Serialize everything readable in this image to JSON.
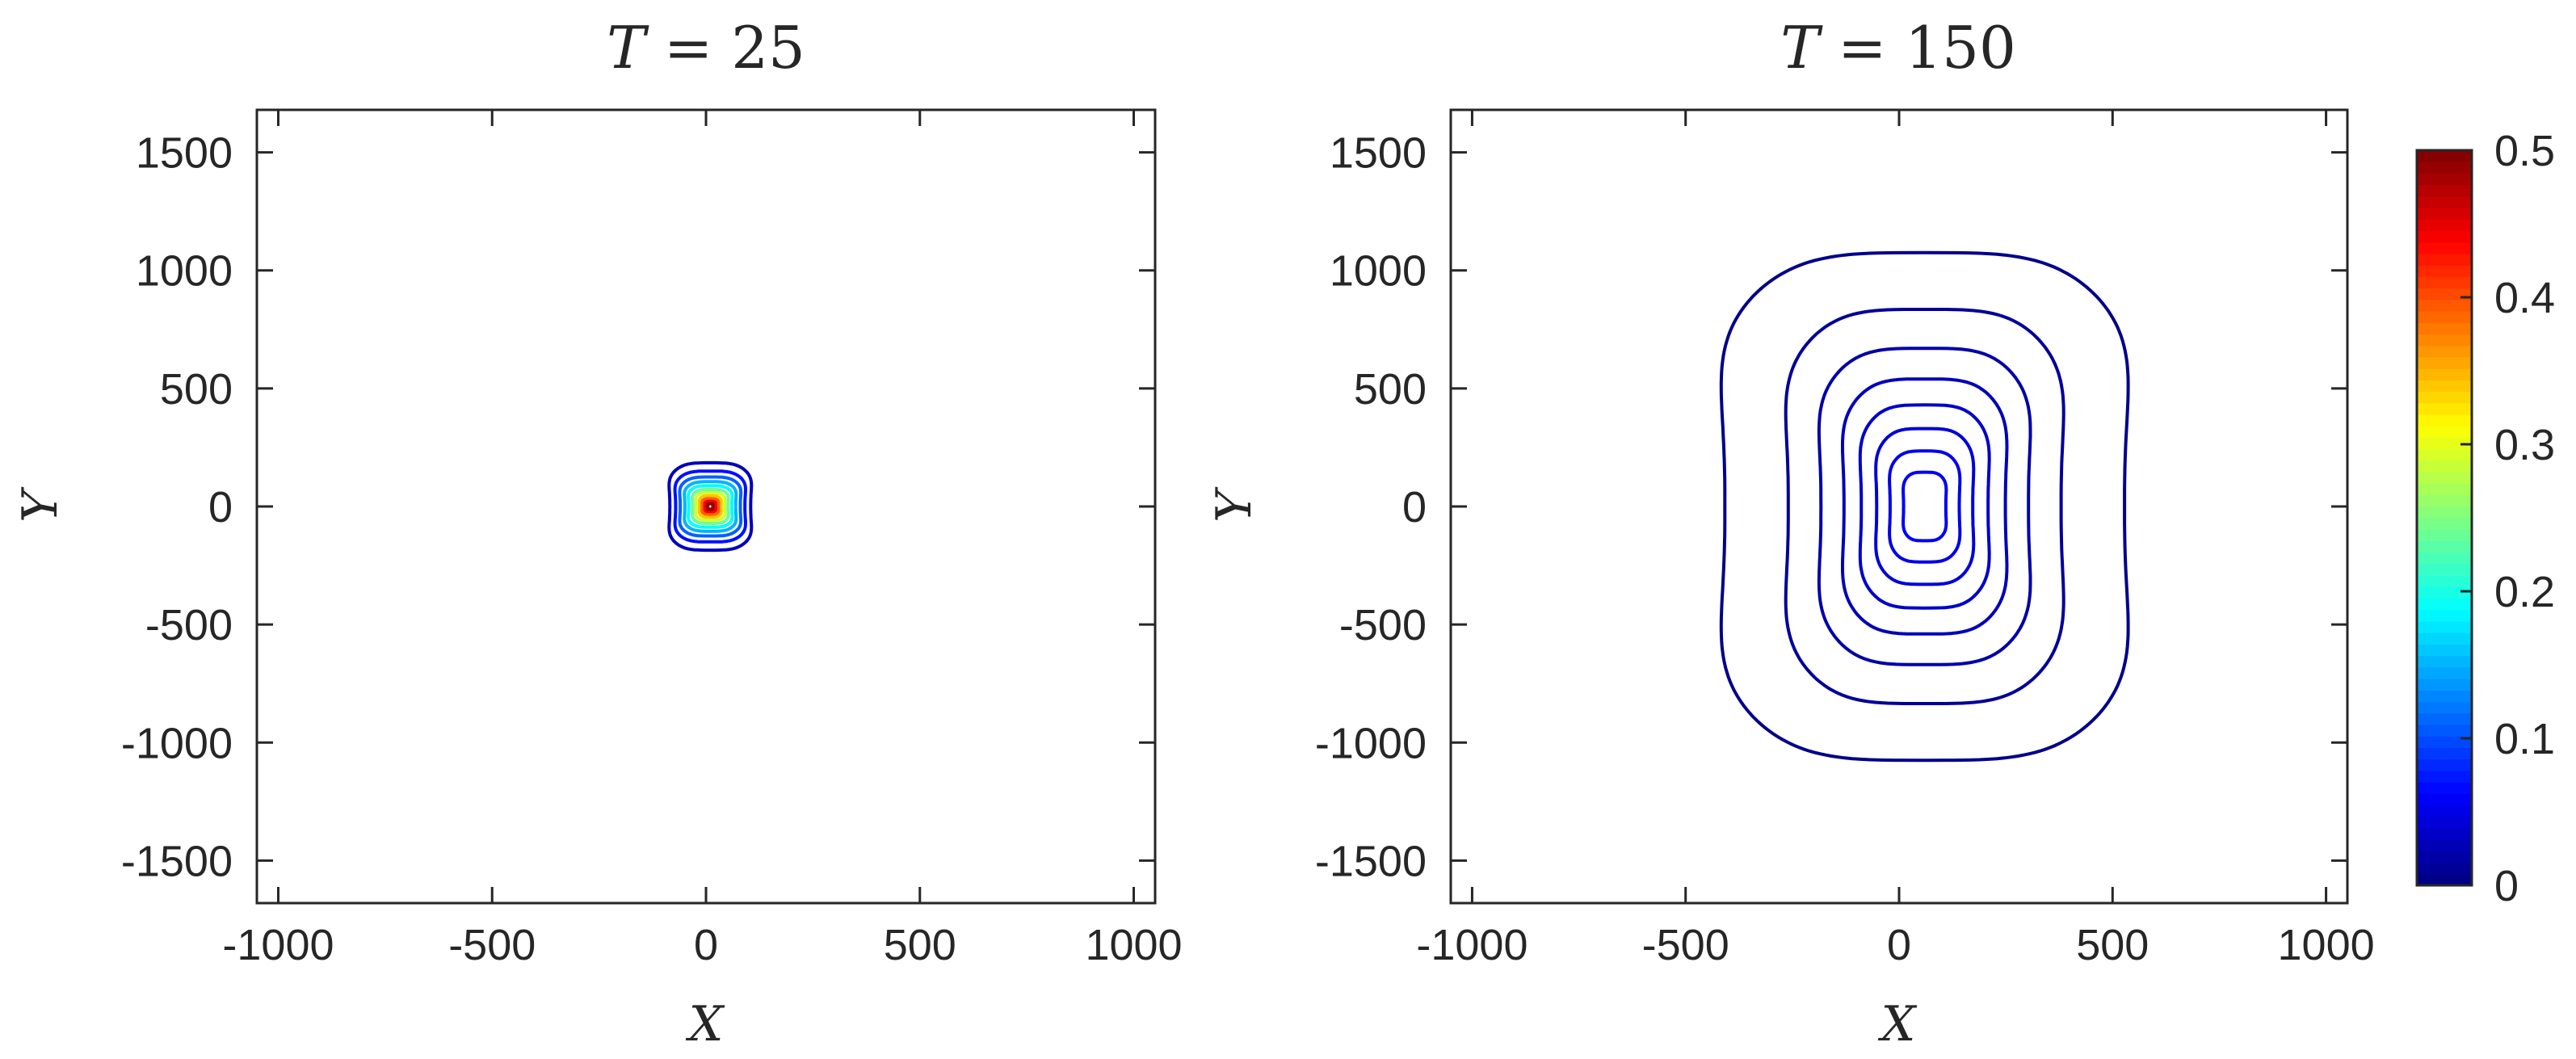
{
  "colorbar": {
    "min": 0,
    "max": 0.5,
    "ticks": [
      "0",
      "0.1",
      "0.2",
      "0.3",
      "0.4",
      "0.5"
    ],
    "colormap": "jet"
  },
  "chart_data": [
    {
      "type": "contour",
      "title": {
        "var": "T",
        "eq": " = ",
        "val": "25"
      },
      "xlabel": "X",
      "ylabel": "Y",
      "xlim": [
        -1050,
        1050
      ],
      "ylim": [
        -1680,
        1680
      ],
      "xticks": [
        "-1000",
        "-500",
        "0",
        "500",
        "1000"
      ],
      "yticks": [
        "1500",
        "1000",
        "500",
        "0",
        "-500",
        "-1000",
        "-1500"
      ],
      "grid": false,
      "center": [
        10,
        0
      ],
      "levels": [
        {
          "level": 0.03,
          "halfwidth": 105,
          "halfheight": 185
        },
        {
          "level": 0.07,
          "halfwidth": 90,
          "halfheight": 150
        },
        {
          "level": 0.11,
          "halfwidth": 78,
          "halfheight": 125
        },
        {
          "level": 0.15,
          "halfwidth": 66,
          "halfheight": 105
        },
        {
          "level": 0.19,
          "halfwidth": 56,
          "halfheight": 88
        },
        {
          "level": 0.24,
          "halfwidth": 46,
          "halfheight": 72
        },
        {
          "level": 0.29,
          "halfwidth": 37,
          "halfheight": 58
        },
        {
          "level": 0.34,
          "halfwidth": 28,
          "halfheight": 45
        },
        {
          "level": 0.39,
          "halfwidth": 21,
          "halfheight": 33
        },
        {
          "level": 0.44,
          "halfwidth": 14,
          "halfheight": 22
        },
        {
          "level": 0.49,
          "halfwidth": 7,
          "halfheight": 12
        }
      ]
    },
    {
      "type": "contour",
      "title": {
        "var": "T",
        "eq": " = ",
        "val": "150"
      },
      "xlabel": "X",
      "ylabel": "Y",
      "xlim": [
        -1050,
        1050
      ],
      "ylim": [
        -1680,
        1680
      ],
      "xticks": [
        "-1000",
        "-500",
        "0",
        "500",
        "1000"
      ],
      "yticks": [
        "1500",
        "1000",
        "500",
        "0",
        "-500",
        "-1000",
        "-1500"
      ],
      "grid": false,
      "center": [
        60,
        0
      ],
      "levels": [
        {
          "level": 0.005,
          "halfwidth": 520,
          "halfheight": 1075
        },
        {
          "level": 0.012,
          "halfwidth": 355,
          "halfheight": 835
        },
        {
          "level": 0.02,
          "halfwidth": 270,
          "halfheight": 670
        },
        {
          "level": 0.028,
          "halfwidth": 210,
          "halfheight": 540
        },
        {
          "level": 0.036,
          "halfwidth": 165,
          "halfheight": 430
        },
        {
          "level": 0.044,
          "halfwidth": 125,
          "halfheight": 330
        },
        {
          "level": 0.052,
          "halfwidth": 90,
          "halfheight": 235
        },
        {
          "level": 0.06,
          "halfwidth": 55,
          "halfheight": 145
        }
      ]
    }
  ]
}
